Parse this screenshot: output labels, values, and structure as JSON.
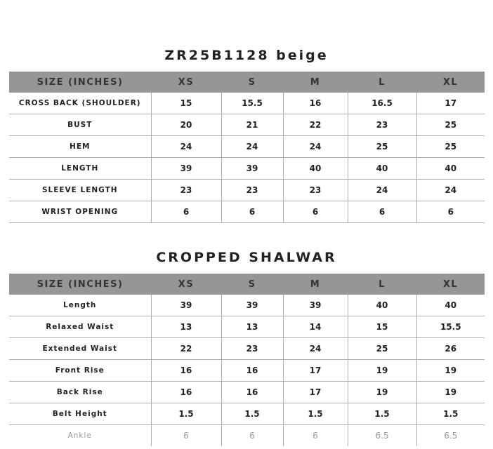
{
  "tables": [
    {
      "title": "ZR25B1128 beige",
      "headers": [
        "SIZE (INCHES)",
        "XS",
        "S",
        "M",
        "L",
        "XL"
      ],
      "rows": [
        [
          "CROSS BACK (SHOULDER)",
          "15",
          "15.5",
          "16",
          "16.5",
          "17"
        ],
        [
          "BUST",
          "20",
          "21",
          "22",
          "23",
          "25"
        ],
        [
          "HEM",
          "24",
          "24",
          "24",
          "25",
          "25"
        ],
        [
          "LENGTH",
          "39",
          "39",
          "40",
          "40",
          "40"
        ],
        [
          "SLEEVE LENGTH",
          "23",
          "23",
          "23",
          "24",
          "24"
        ],
        [
          "WRIST OPENING",
          "6",
          "6",
          "6",
          "6",
          "6"
        ]
      ]
    },
    {
      "title": "CROPPED SHALWAR",
      "headers": [
        "SIZE (INCHES)",
        "XS",
        "S",
        "M",
        "L",
        "XL"
      ],
      "rows": [
        [
          "Length",
          "39",
          "39",
          "39",
          "40",
          "40"
        ],
        [
          "Relaxed Waist",
          "13",
          "13",
          "14",
          "15",
          "15.5"
        ],
        [
          "Extended Waist",
          "22",
          "23",
          "24",
          "25",
          "26"
        ],
        [
          "Front Rise",
          "16",
          "16",
          "17",
          "19",
          "19"
        ],
        [
          "Back Rise",
          "16",
          "16",
          "17",
          "19",
          "19"
        ],
        [
          "Belt Height",
          "1.5",
          "1.5",
          "1.5",
          "1.5",
          "1.5"
        ],
        [
          "Ankle",
          "6",
          "6",
          "6",
          "6.5",
          "6.5"
        ]
      ]
    }
  ],
  "colors": {
    "header_bg": "#969696",
    "border": "#b0b0b0"
  }
}
